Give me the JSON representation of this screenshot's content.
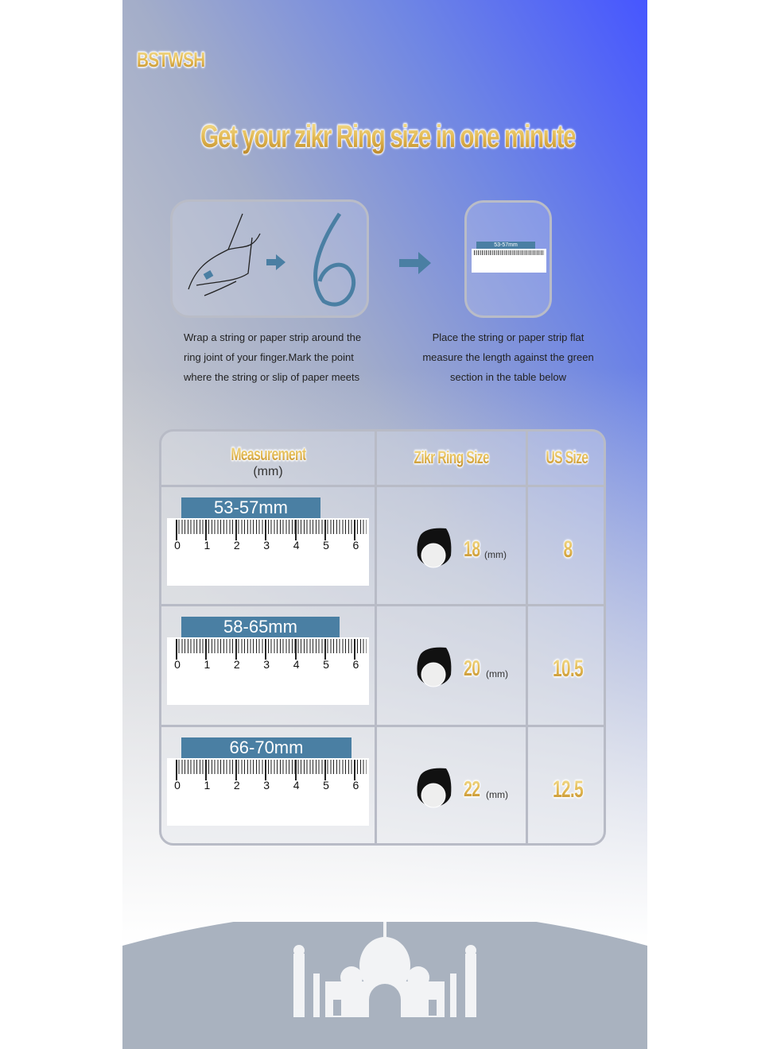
{
  "brand": "BSTWSH",
  "title": "Get your zikr Ring size in one minute",
  "steps": [
    {
      "ruler_label": "53-57mm",
      "lines": [
        "Wrap a string or paper strip around the",
        "ring joint of your finger.Mark the point",
        "where the string or slip of paper meets"
      ]
    },
    {
      "ruler_label": "53-57mm",
      "lines": [
        "Place the string or paper strip flat",
        "measure the length against the green",
        "section in the table below"
      ]
    }
  ],
  "table": {
    "headers": {
      "measurement": "Measurement",
      "measurement_unit": "(mm)",
      "zikr": "Zikr Ring Size",
      "us": "US Size"
    },
    "rows": [
      {
        "range": "53-57mm",
        "zikr": "18",
        "unit": "(mm)",
        "us": "8"
      },
      {
        "range": "58-65mm",
        "zikr": "20",
        "unit": "(mm)",
        "us": "10.5"
      },
      {
        "range": "66-70mm",
        "zikr": "22",
        "unit": "(mm)",
        "us": "12.5"
      }
    ],
    "ruler_numbers": [
      "0",
      "1",
      "2",
      "3",
      "4",
      "5",
      "6"
    ]
  },
  "colors": {
    "accent": "#4a7fa3",
    "gold": "#d8ad45",
    "blue": "#4656ff"
  }
}
